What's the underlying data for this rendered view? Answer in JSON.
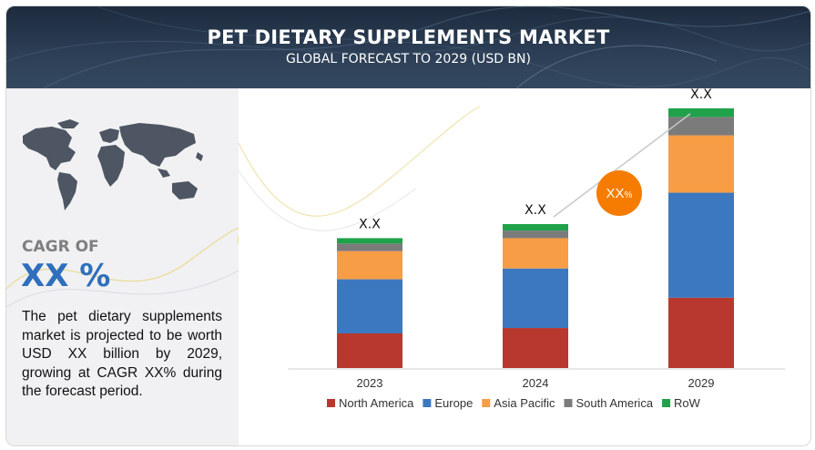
{
  "header": {
    "title": "PET DIETARY SUPPLEMENTS MARKET",
    "subtitle": "GLOBAL FORECAST TO 2029 (USD BN)"
  },
  "sidebar": {
    "cagr_label": "CAGR OF",
    "cagr_value": "XX %",
    "description": "The pet dietary supplements market is projected to be worth USD XX billion by 2029, growing at CAGR XX% during the forecast period."
  },
  "growth_badge": {
    "text": "XX",
    "suffix": "%"
  },
  "colors": {
    "north_america": "#b8372e",
    "europe": "#3b78c0",
    "asia_pacific": "#f79d46",
    "south_america": "#7b7b7b",
    "row": "#1fa24a",
    "badge": "#f57c00"
  },
  "chart_data": {
    "type": "bar",
    "stacked": true,
    "categories": [
      "2023",
      "2024",
      "2029"
    ],
    "series": [
      {
        "name": "North America",
        "values": [
          32,
          37,
          65
        ],
        "color": "#b8372e"
      },
      {
        "name": "Europe",
        "values": [
          50,
          55,
          97
        ],
        "color": "#3b78c0"
      },
      {
        "name": "Asia Pacific",
        "values": [
          26,
          28,
          53
        ],
        "color": "#f79d46"
      },
      {
        "name": "South America",
        "values": [
          7,
          7,
          17
        ],
        "color": "#7b7b7b"
      },
      {
        "name": "RoW",
        "values": [
          5,
          6,
          8
        ],
        "color": "#1fa24a"
      }
    ],
    "totals_labels": [
      "X.X",
      "X.X",
      "X.X"
    ],
    "ylim": [
      0,
      250
    ],
    "grid": false,
    "legend": "bottom"
  }
}
